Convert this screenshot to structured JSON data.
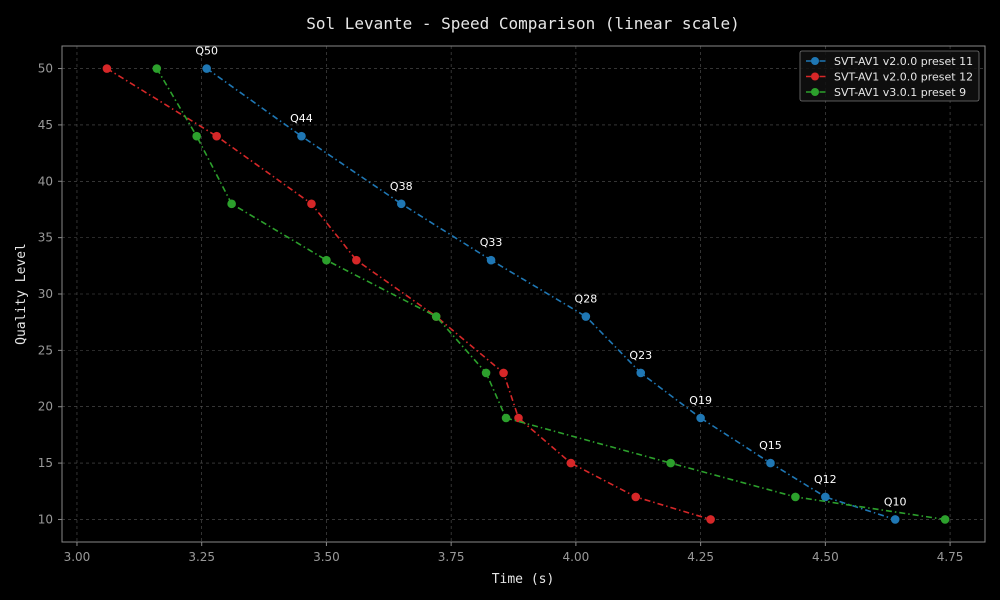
{
  "chart_data": {
    "type": "line",
    "title": "Sol Levante - Speed Comparison (linear scale)",
    "xlabel": "Time (s)",
    "ylabel": "Quality Level",
    "xlim": [
      2.97,
      4.82
    ],
    "ylim": [
      8,
      52
    ],
    "xticks": [
      3.0,
      3.25,
      3.5,
      3.75,
      4.0,
      4.25,
      4.5,
      4.75
    ],
    "xtick_labels": [
      "3.00",
      "3.25",
      "3.50",
      "3.75",
      "4.00",
      "4.25",
      "4.50",
      "4.75"
    ],
    "yticks": [
      10,
      15,
      20,
      25,
      30,
      35,
      40,
      45,
      50
    ],
    "ytick_labels": [
      "10",
      "15",
      "20",
      "25",
      "30",
      "35",
      "40",
      "45",
      "50"
    ],
    "grid": true,
    "legend_position": "top-right",
    "series": [
      {
        "name": "SVT-AV1 v2.0.0 preset 11",
        "color": "#1f77b4",
        "x": [
          3.26,
          3.45,
          3.65,
          3.83,
          4.02,
          4.13,
          4.25,
          4.39,
          4.5,
          4.64
        ],
        "y": [
          50,
          44,
          38,
          33,
          28,
          23,
          19,
          15,
          12,
          10
        ]
      },
      {
        "name": "SVT-AV1 v2.0.0 preset 12",
        "color": "#d62728",
        "x": [
          3.06,
          3.28,
          3.47,
          3.56,
          3.72,
          3.855,
          3.885,
          3.99,
          4.12,
          4.27
        ],
        "y": [
          50,
          44,
          38,
          33,
          28,
          23,
          19,
          15,
          12,
          10
        ]
      },
      {
        "name": "SVT-AV1 v3.0.1 preset 9",
        "color": "#2ca02c",
        "x": [
          3.16,
          3.24,
          3.31,
          3.5,
          3.72,
          3.82,
          3.86,
          4.19,
          4.44,
          4.74
        ],
        "y": [
          50,
          44,
          38,
          33,
          28,
          23,
          19,
          15,
          12,
          10
        ]
      }
    ],
    "annotations": [
      {
        "text": "Q50",
        "x": 3.26,
        "y": 50
      },
      {
        "text": "Q44",
        "x": 3.45,
        "y": 44
      },
      {
        "text": "Q38",
        "x": 3.65,
        "y": 38
      },
      {
        "text": "Q33",
        "x": 3.83,
        "y": 33
      },
      {
        "text": "Q28",
        "x": 4.02,
        "y": 28
      },
      {
        "text": "Q23",
        "x": 4.13,
        "y": 23
      },
      {
        "text": "Q19",
        "x": 4.25,
        "y": 19
      },
      {
        "text": "Q15",
        "x": 4.39,
        "y": 15
      },
      {
        "text": "Q12",
        "x": 4.5,
        "y": 12
      },
      {
        "text": "Q10",
        "x": 4.64,
        "y": 10
      }
    ]
  }
}
